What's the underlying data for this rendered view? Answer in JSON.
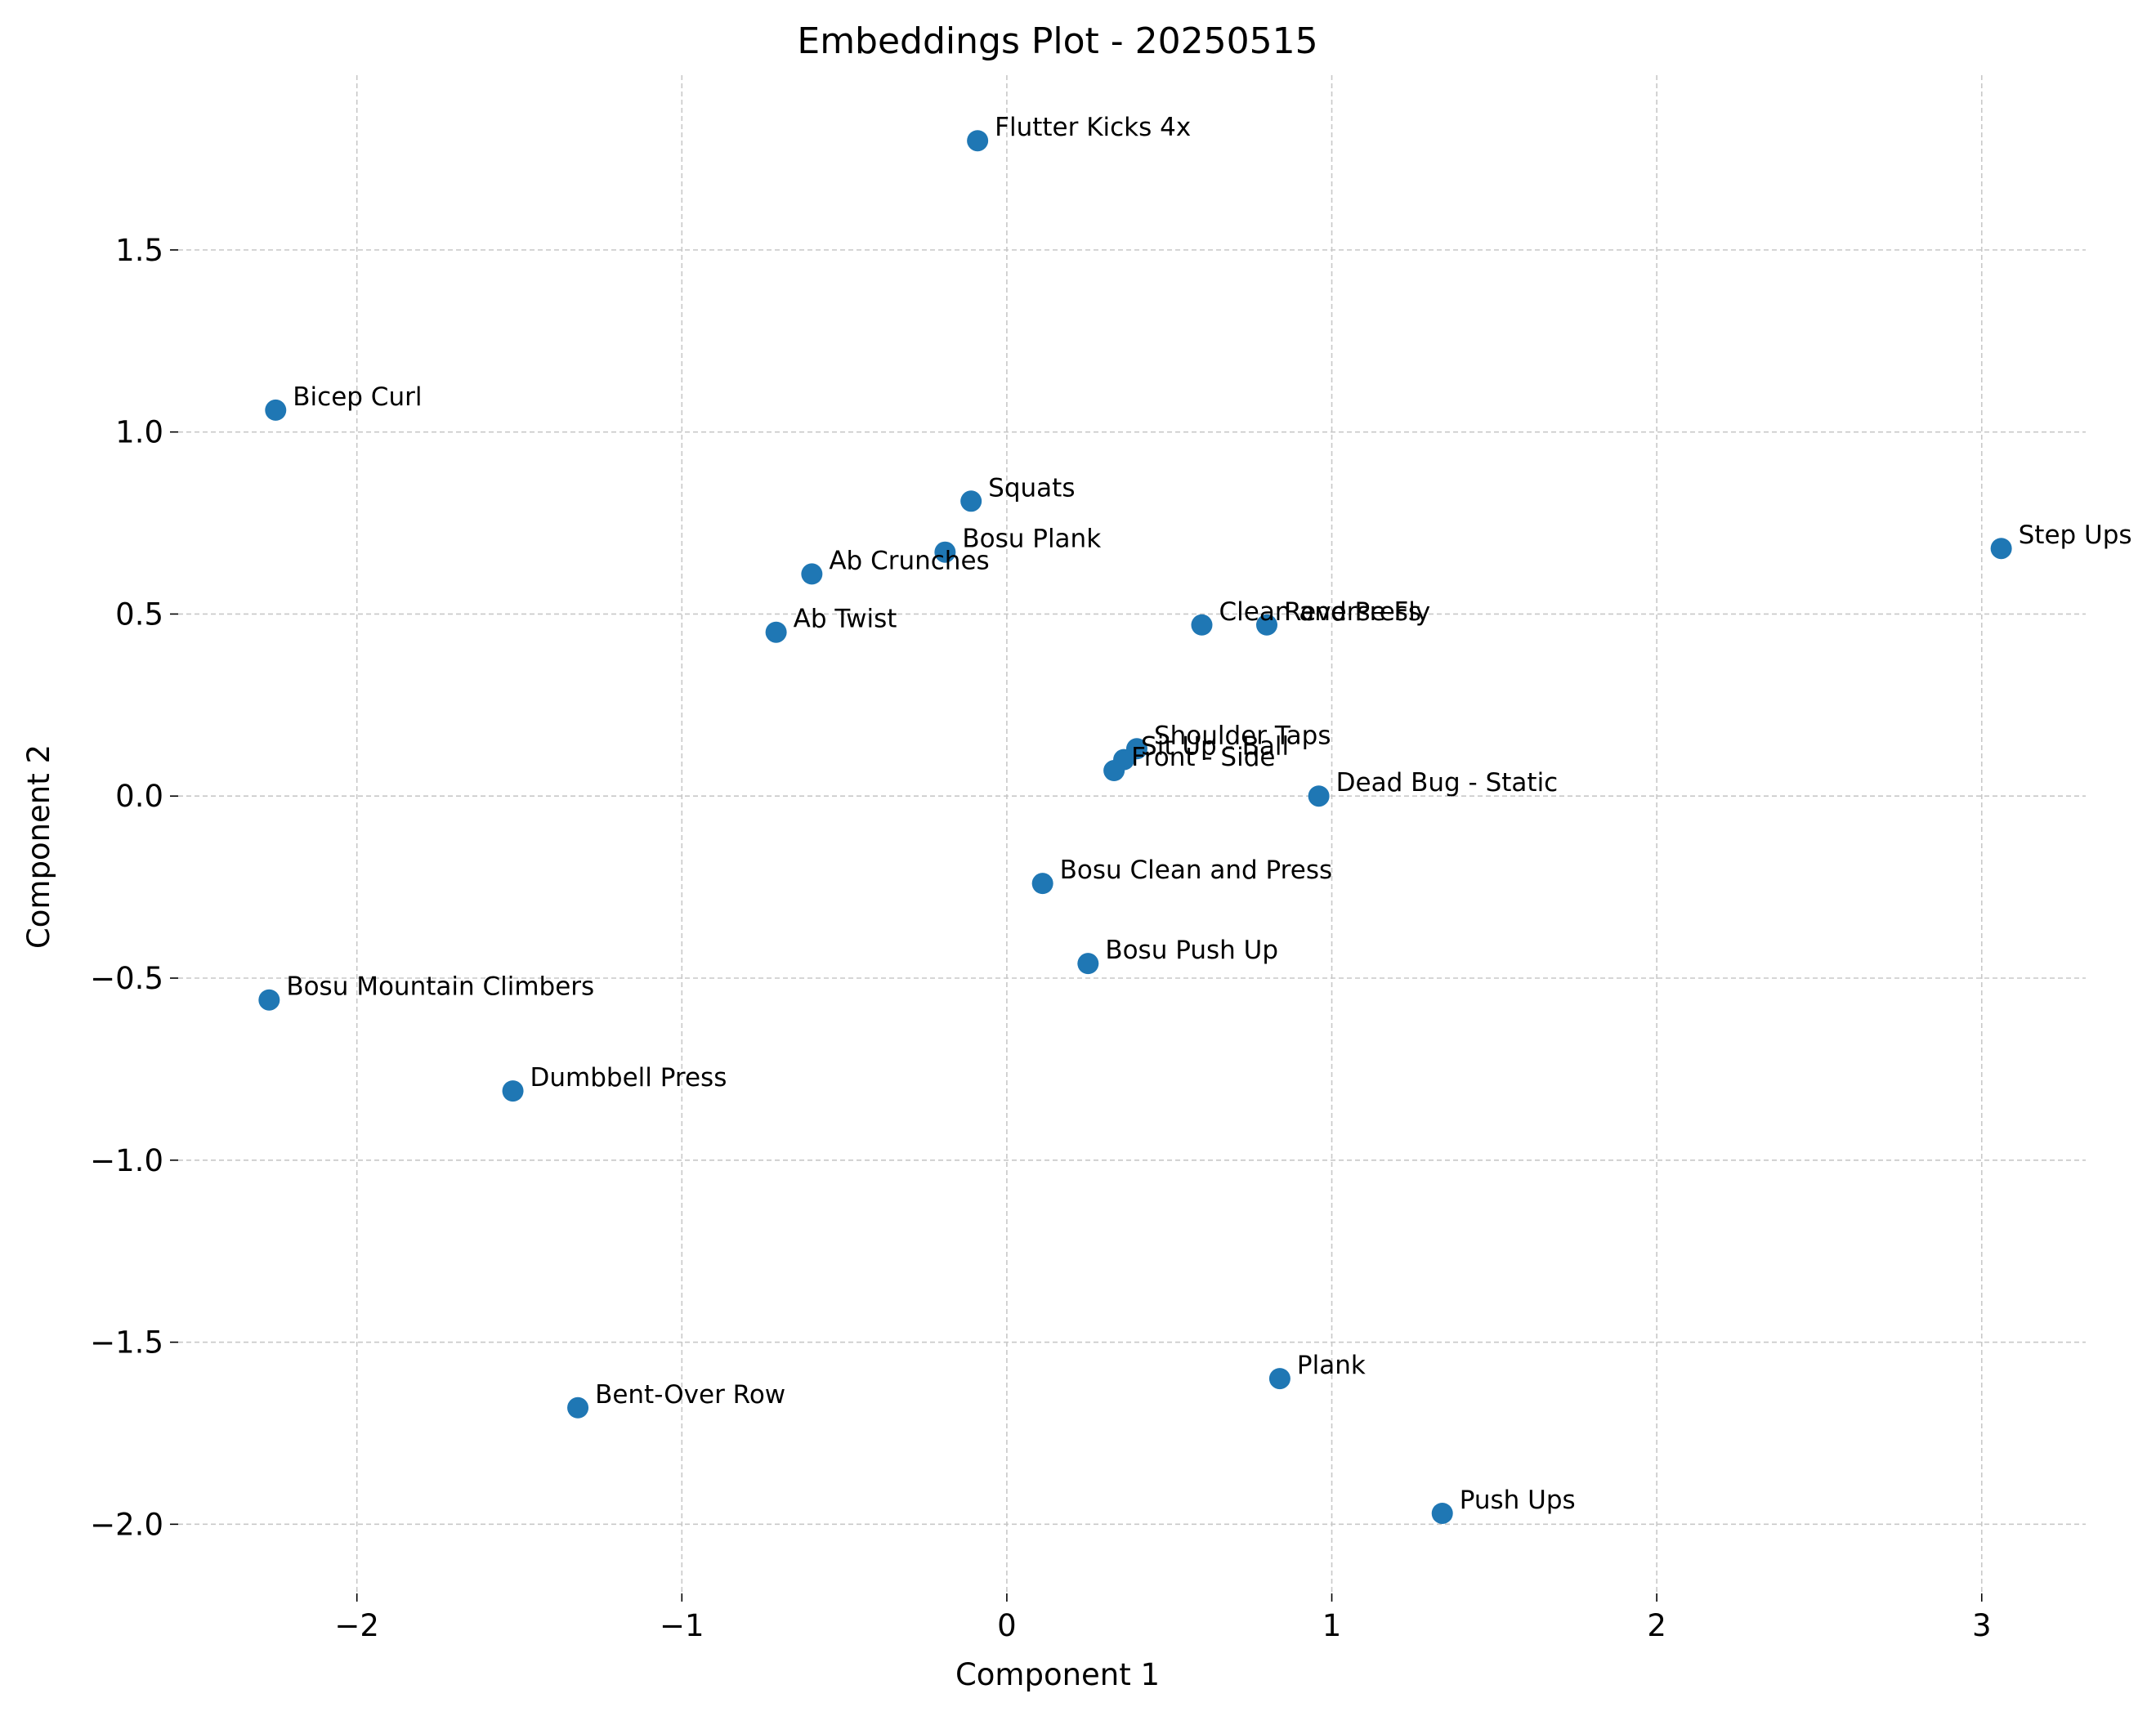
{
  "chart_data": {
    "type": "scatter",
    "title": "Embeddings Plot - 20250515",
    "xlabel": "Component 1",
    "ylabel": "Component 2",
    "xlim": [
      -2.55,
      3.32
    ],
    "ylim": [
      -2.19,
      1.98
    ],
    "xticks": [
      -2,
      -1,
      0,
      1,
      2,
      3
    ],
    "yticks": [
      1.5,
      1.0,
      0.5,
      0.0,
      -0.5,
      -1.0,
      -1.5,
      -2.0
    ],
    "xtick_labels": [
      "−2",
      "−1",
      "0",
      "1",
      "2",
      "3"
    ],
    "ytick_labels": [
      "1.5",
      "1.0",
      "0.5",
      "0.0",
      "−0.5",
      "−1.0",
      "−1.5",
      "−2.0"
    ],
    "grid": true,
    "point_color": "#1f77b4",
    "points": [
      {
        "label": "Flutter Kicks 4x",
        "x": -0.09,
        "y": 1.8
      },
      {
        "label": "Bicep Curl",
        "x": -2.25,
        "y": 1.06
      },
      {
        "label": "Squats",
        "x": -0.11,
        "y": 0.81
      },
      {
        "label": "Bosu Plank",
        "x": -0.19,
        "y": 0.67
      },
      {
        "label": "Ab Crunches",
        "x": -0.6,
        "y": 0.61
      },
      {
        "label": "Ab Twist",
        "x": -0.71,
        "y": 0.45
      },
      {
        "label": "Clean and Press",
        "x": 0.6,
        "y": 0.47
      },
      {
        "label": "Reverse Fly",
        "x": 0.8,
        "y": 0.47
      },
      {
        "label": "Step Ups",
        "x": 3.06,
        "y": 0.68
      },
      {
        "label": "Shoulder Taps",
        "x": 0.4,
        "y": 0.13
      },
      {
        "label": "Sit Up - Ball",
        "x": 0.36,
        "y": 0.1
      },
      {
        "label": "Front - Side",
        "x": 0.33,
        "y": 0.07
      },
      {
        "label": "Dead Bug - Static",
        "x": 0.96,
        "y": 0.0
      },
      {
        "label": "Bosu Clean and Press",
        "x": 0.11,
        "y": -0.24
      },
      {
        "label": "Bosu Push Up",
        "x": 0.25,
        "y": -0.46
      },
      {
        "label": "Bosu Mountain Climbers",
        "x": -2.27,
        "y": -0.56
      },
      {
        "label": "Dumbbell Press",
        "x": -1.52,
        "y": -0.81
      },
      {
        "label": "Bent-Over Row",
        "x": -1.32,
        "y": -1.68
      },
      {
        "label": "Plank",
        "x": 0.84,
        "y": -1.6
      },
      {
        "label": "Push Ups",
        "x": 1.34,
        "y": -1.97
      }
    ]
  }
}
